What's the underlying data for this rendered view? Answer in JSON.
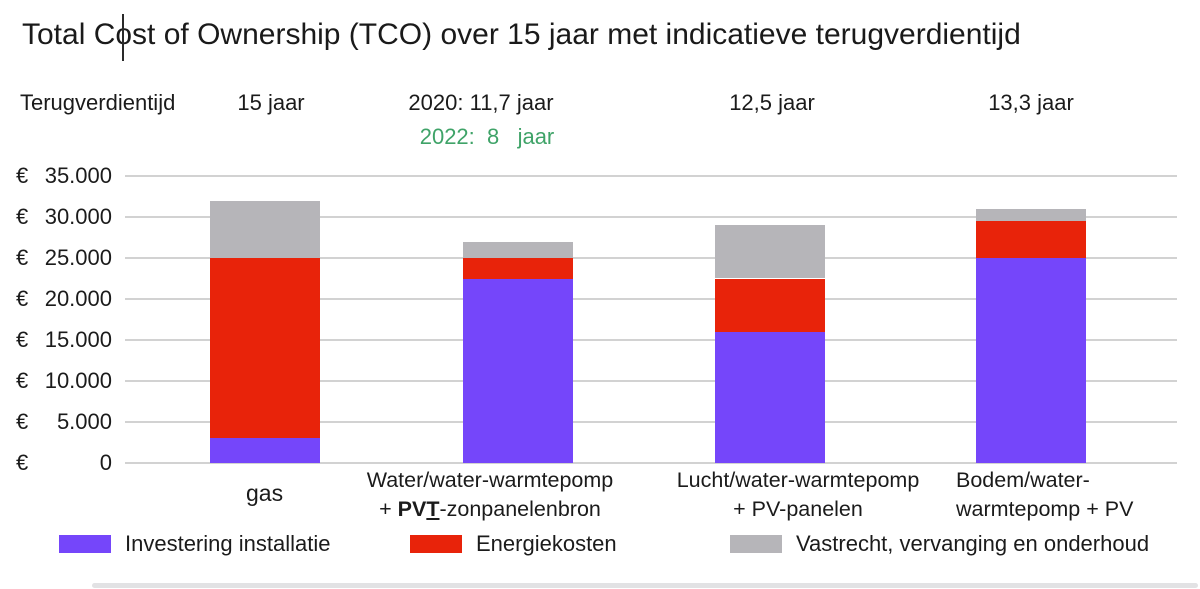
{
  "title": "Total Cost of Ownership (TCO) over 15 jaar met indicatieve terugverdientijd",
  "payback": {
    "label": "Terugverdientijd",
    "col1": "15 jaar",
    "col2_2020": "2020: 11,7 jaar",
    "col2_2022": "2022:  8   jaar",
    "col3": "12,5 jaar",
    "col4": "13,3 jaar"
  },
  "y_axis": {
    "currency": "€",
    "ticks": [
      {
        "value": 35000,
        "label": "35.000"
      },
      {
        "value": 30000,
        "label": "30.000"
      },
      {
        "value": 25000,
        "label": "25.000"
      },
      {
        "value": 20000,
        "label": "20.000"
      },
      {
        "value": 15000,
        "label": "15.000"
      },
      {
        "value": 10000,
        "label": "10.000"
      },
      {
        "value": 5000,
        "label": "5.000"
      },
      {
        "value": 0,
        "label": "0"
      }
    ]
  },
  "x_labels": {
    "cat1": "gas",
    "cat2_line1": "Water/water-warmtepomp",
    "cat2_line2_prefix": "+ ",
    "cat2_line2_bold": "PV",
    "cat2_line2_bold_u": "T",
    "cat2_line2_rest": "-zonpanelenbron",
    "cat3_line1": "Lucht/water-warmtepomp",
    "cat3_line2": "+ PV-panelen",
    "cat4_line1": "Bodem/water-",
    "cat4_line2": "warmtepomp + PV"
  },
  "legend": {
    "item1": "Investering installatie",
    "item2": "Energiekosten",
    "item3": "Vastrecht, vervanging en onderhoud"
  },
  "colors": {
    "invest": "#7546fa",
    "energy": "#e8230a",
    "fixed": "#b6b5b9",
    "grid": "#d2d2d2",
    "green_text": "#3fa368"
  },
  "chart_data": {
    "type": "bar",
    "stacked": true,
    "title": "Total Cost of Ownership (TCO) over 15 jaar met indicatieve terugverdientijd",
    "ylabel": "€",
    "ylim": [
      0,
      35000
    ],
    "ytick_step": 5000,
    "grid": true,
    "legend_position": "bottom",
    "categories": [
      "gas",
      "Water/water-warmtepomp + PVT-zonpanelenbron",
      "Lucht/water-warmtepomp + PV-panelen",
      "Bodem/water-warmtepomp + PV"
    ],
    "payback_per_category": [
      "15 jaar",
      "2020: 11,7 jaar / 2022: 8 jaar",
      "12,5 jaar",
      "13,3 jaar"
    ],
    "series": [
      {
        "name": "Investering installatie",
        "color": "#7546fa",
        "values": [
          3000,
          22500,
          16000,
          25000
        ]
      },
      {
        "name": "Energiekosten",
        "color": "#e8230a",
        "values": [
          22000,
          2500,
          6500,
          4500
        ]
      },
      {
        "name": "Vastrecht, vervanging en onderhoud",
        "color": "#b6b5b9",
        "values": [
          7000,
          2000,
          6500,
          1500
        ]
      }
    ]
  }
}
